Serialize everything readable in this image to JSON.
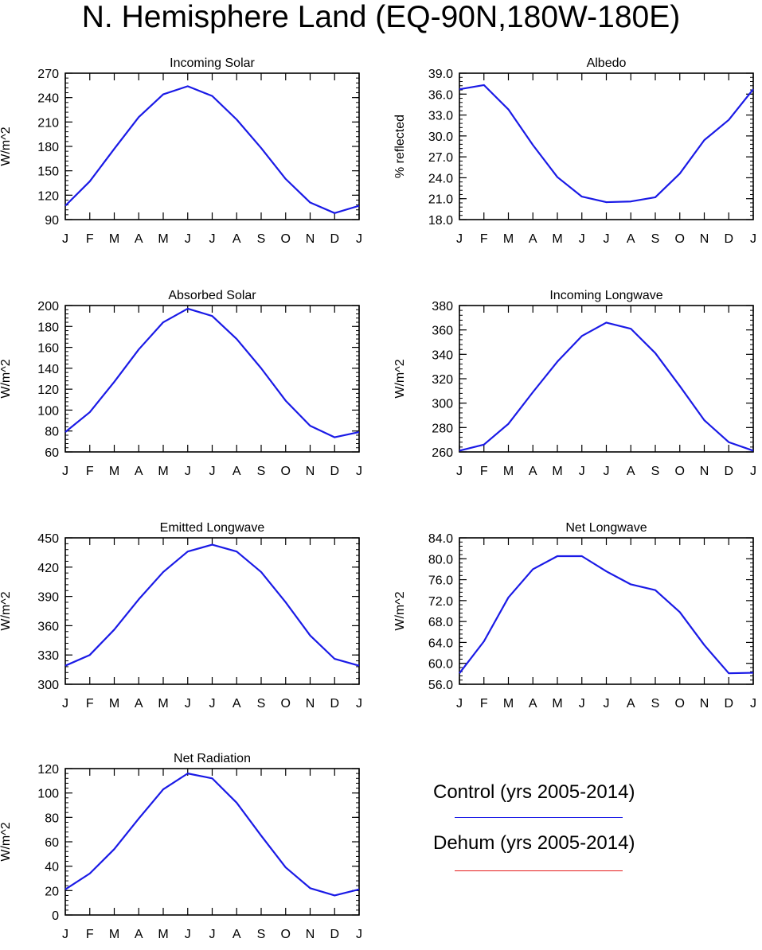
{
  "title": "N. Hemisphere Land (EQ-90N,180W-180E)",
  "months": [
    "J",
    "F",
    "M",
    "A",
    "M",
    "J",
    "J",
    "A",
    "S",
    "O",
    "N",
    "D",
    "J"
  ],
  "chart_data": [
    {
      "type": "line",
      "title": "Incoming Solar",
      "ylabel": "W/m^2",
      "ylim": [
        90,
        270
      ],
      "yticks": [
        "270",
        "240",
        "210",
        "180",
        "150",
        "120",
        "90"
      ],
      "series": [
        {
          "name": "Control (yrs 2005-2014)",
          "color": "#1a1ae6",
          "values": [
            107,
            137,
            177,
            216,
            244,
            254,
            242,
            213,
            178,
            140,
            111,
            98,
            107
          ]
        }
      ]
    },
    {
      "type": "line",
      "title": "Albedo",
      "ylabel": "% reflected",
      "ylim": [
        18.0,
        39.0
      ],
      "yticks": [
        "39.0",
        "36.0",
        "33.0",
        "30.0",
        "27.0",
        "24.0",
        "21.0",
        "18.0"
      ],
      "series": [
        {
          "name": "Control (yrs 2005-2014)",
          "color": "#1a1ae6",
          "values": [
            36.7,
            37.3,
            33.8,
            28.7,
            24.1,
            21.3,
            20.5,
            20.6,
            21.2,
            24.6,
            29.4,
            32.3,
            36.7
          ]
        }
      ]
    },
    {
      "type": "line",
      "title": "Absorbed Solar",
      "ylabel": "W/m^2",
      "ylim": [
        60,
        200
      ],
      "yticks": [
        "200",
        "180",
        "160",
        "140",
        "120",
        "100",
        "80",
        "60"
      ],
      "series": [
        {
          "name": "Control (yrs 2005-2014)",
          "color": "#1a1ae6",
          "values": [
            79,
            98,
            127,
            158,
            184,
            197,
            190,
            168,
            140,
            109,
            85,
            74,
            79
          ]
        }
      ]
    },
    {
      "type": "line",
      "title": "Incoming Longwave",
      "ylabel": "W/m^2",
      "ylim": [
        260,
        380
      ],
      "yticks": [
        "380",
        "360",
        "340",
        "320",
        "300",
        "280",
        "260"
      ],
      "series": [
        {
          "name": "Control (yrs 2005-2014)",
          "color": "#1a1ae6",
          "values": [
            261,
            266,
            283,
            309,
            334,
            355,
            366,
            361,
            341,
            314,
            286,
            268,
            261
          ]
        }
      ]
    },
    {
      "type": "line",
      "title": "Emitted Longwave",
      "ylabel": "W/m^2",
      "ylim": [
        300,
        450
      ],
      "yticks": [
        "450",
        "420",
        "390",
        "360",
        "330",
        "300"
      ],
      "series": [
        {
          "name": "Control (yrs 2005-2014)",
          "color": "#1a1ae6",
          "values": [
            319,
            330,
            356,
            387,
            415,
            436,
            443,
            436,
            415,
            384,
            350,
            326,
            319
          ]
        }
      ]
    },
    {
      "type": "line",
      "title": "Net Longwave",
      "ylabel": "W/m^2",
      "ylim": [
        56.0,
        84.0
      ],
      "yticks": [
        "84.0",
        "80.0",
        "76.0",
        "72.0",
        "68.0",
        "64.0",
        "60.0",
        "56.0"
      ],
      "series": [
        {
          "name": "Control (yrs 2005-2014)",
          "color": "#1a1ae6",
          "values": [
            58.1,
            64.2,
            72.6,
            78.0,
            80.5,
            80.5,
            77.6,
            75.1,
            74.0,
            69.8,
            63.5,
            58.1,
            58.2
          ]
        }
      ]
    },
    {
      "type": "line",
      "title": "Net Radiation",
      "ylabel": "W/m^2",
      "ylim": [
        0,
        120
      ],
      "yticks": [
        "120",
        "100",
        "80",
        "60",
        "40",
        "20",
        "0"
      ],
      "series": [
        {
          "name": "Control (yrs 2005-2014)",
          "color": "#1a1ae6",
          "values": [
            21,
            34,
            54,
            79,
            103,
            116,
            112,
            92,
            65,
            39,
            22,
            16,
            21
          ]
        }
      ]
    }
  ],
  "legend": {
    "entries": [
      {
        "label": "Control (yrs 2005-2014)",
        "color": "#1a1ae6"
      },
      {
        "label": "Dehum (yrs 2005-2014)",
        "color": "#e61a1a"
      }
    ]
  }
}
